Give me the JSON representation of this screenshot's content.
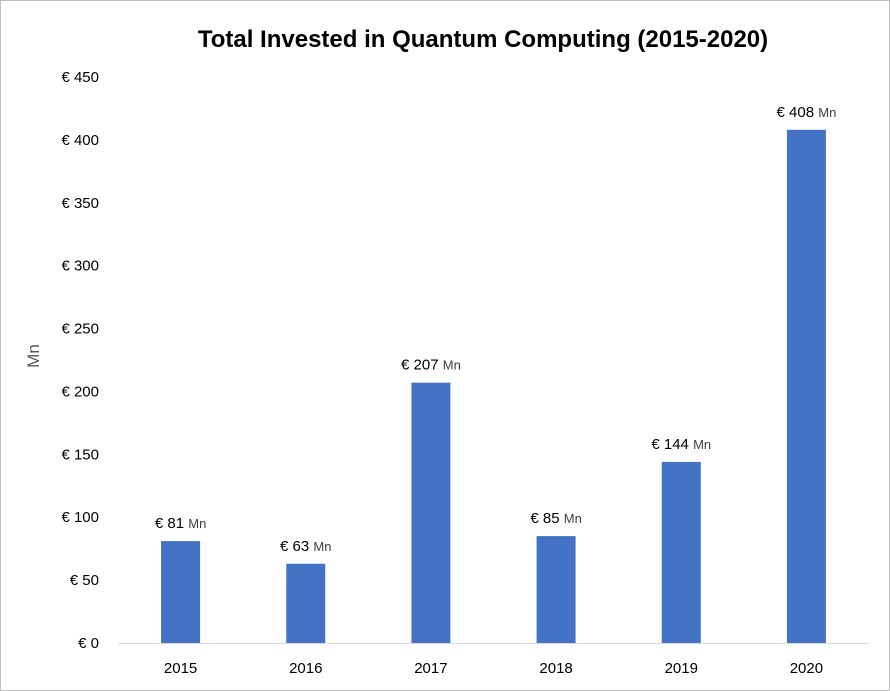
{
  "chart_data": {
    "type": "bar",
    "title": "Total Invested in Quantum Computing (2015-2020)",
    "xlabel": "",
    "ylabel": "Mn",
    "categories": [
      "2015",
      "2016",
      "2017",
      "2018",
      "2019",
      "2020"
    ],
    "values": [
      81,
      63,
      207,
      85,
      144,
      408
    ],
    "data_labels": [
      "€ 81",
      "€ 63",
      "€ 207",
      "€ 85",
      "€ 144",
      "€ 408"
    ],
    "data_label_unit": "Mn",
    "ylim": [
      0,
      450
    ],
    "yticks": [
      0,
      50,
      100,
      150,
      200,
      250,
      300,
      350,
      400,
      450
    ],
    "ytick_labels": [
      "€ 0",
      "€ 50",
      "€ 100",
      "€ 150",
      "€ 200",
      "€ 250",
      "€ 300",
      "€ 350",
      "€ 400",
      "€ 450"
    ],
    "grid": false,
    "legend": "none",
    "bar_color": "#4472c4",
    "axis_color": "#d9d9d9"
  }
}
